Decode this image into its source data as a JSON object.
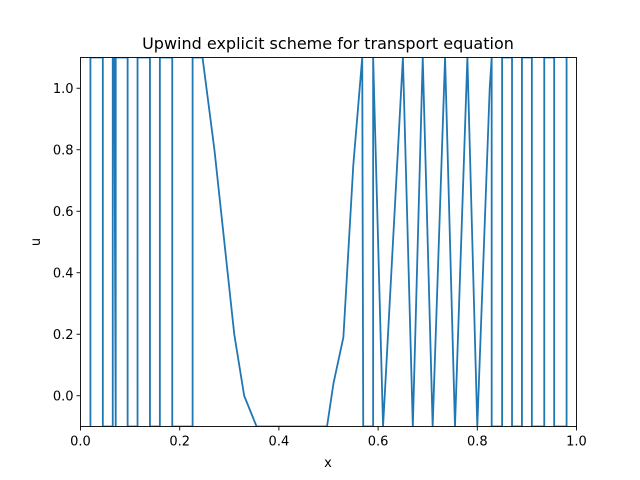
{
  "chart_data": {
    "type": "line",
    "title": "Upwind explicit scheme for transport equation",
    "xlabel": "x",
    "ylabel": "u",
    "xlim": [
      0.0,
      1.0
    ],
    "ylim": [
      -0.1,
      1.1
    ],
    "grid": false,
    "legend": "none",
    "line_color": "#1f77b4",
    "xticks": [
      0.0,
      0.2,
      0.4,
      0.6,
      0.8,
      1.0
    ],
    "xtick_labels": [
      "0.0",
      "0.2",
      "0.4",
      "0.6",
      "0.8",
      "1.0"
    ],
    "yticks": [
      0.0,
      0.2,
      0.4,
      0.6,
      0.8,
      1.0
    ],
    "ytick_labels": [
      "0.0",
      "0.2",
      "0.4",
      "0.6",
      "0.8",
      "1.0"
    ],
    "series": [
      {
        "x": [
          0.02,
          0.02,
          0.02,
          0.045,
          0.045,
          0.045,
          0.065,
          0.065,
          0.068,
          0.071,
          0.071,
          0.071,
          0.095,
          0.095,
          0.095,
          0.115,
          0.115,
          0.115,
          0.14,
          0.14,
          0.14,
          0.16,
          0.16,
          0.16,
          0.185,
          0.185,
          0.185,
          0.226,
          0.226,
          0.226,
          0.246,
          0.27,
          0.29,
          0.31,
          0.33,
          0.355,
          0.375,
          0.4,
          0.42,
          0.445,
          0.465,
          0.49,
          0.497,
          0.51,
          0.53,
          0.55,
          0.568,
          0.57,
          0.57,
          0.59,
          0.59,
          0.59,
          0.61,
          0.61,
          0.61,
          0.65,
          0.65,
          0.65,
          0.67,
          0.67,
          0.67,
          0.69,
          0.69,
          0.69,
          0.71,
          0.71,
          0.71,
          0.735,
          0.735,
          0.735,
          0.755,
          0.755,
          0.755,
          0.78,
          0.78,
          0.78,
          0.8,
          0.8,
          0.8,
          0.825,
          0.829,
          0.829,
          0.85,
          0.85,
          0.85,
          0.87,
          0.87,
          0.87,
          0.89,
          0.89,
          0.89,
          0.91,
          0.91,
          0.91,
          0.935,
          0.935,
          0.935,
          0.955,
          0.955,
          0.955,
          0.98,
          0.98
        ],
        "y": [
          -0.1,
          1.1,
          1.1,
          1.1,
          -0.1,
          -0.1,
          -0.1,
          1.1,
          1.1,
          -0.1,
          1.1,
          1.1,
          1.1,
          -0.1,
          -0.1,
          -0.1,
          1.1,
          1.1,
          1.1,
          -0.1,
          -0.1,
          -0.1,
          1.1,
          1.1,
          1.1,
          -0.1,
          -0.1,
          -0.1,
          1.1,
          1.1,
          1.1,
          0.8,
          0.5,
          0.2,
          0.0,
          -0.1,
          -0.1,
          -0.1,
          -0.1,
          -0.1,
          -0.1,
          -0.1,
          -0.1,
          0.04,
          0.19,
          0.75,
          1.1,
          -0.1,
          -0.1,
          -0.1,
          1.1,
          1.1,
          -0.1,
          -0.1,
          -0.1,
          1.1,
          1.1,
          1.1,
          -0.1,
          -0.1,
          -0.1,
          1.1,
          1.1,
          1.1,
          -0.1,
          -0.1,
          -0.1,
          1.1,
          1.1,
          1.1,
          -0.1,
          -0.1,
          -0.1,
          1.1,
          1.1,
          1.1,
          -0.1,
          -0.1,
          -0.1,
          1.0,
          1.1,
          -0.1,
          -0.1,
          1.1,
          1.1,
          1.1,
          -0.1,
          -0.1,
          -0.1,
          1.1,
          1.1,
          1.1,
          -0.1,
          -0.1,
          -0.1,
          1.1,
          1.1,
          1.1,
          -0.1,
          -0.1,
          -0.1,
          1.1
        ]
      }
    ]
  }
}
